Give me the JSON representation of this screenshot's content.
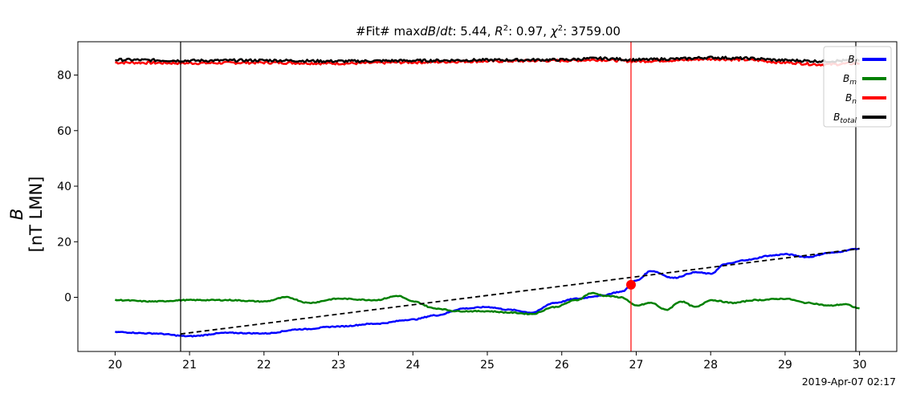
{
  "chart_data": {
    "type": "line",
    "title": "#Fit# maxdB/dt: 5.44, R²: 0.97, χ²: 3759.00",
    "ylabel": "B",
    "yunit": "[nT LMN]",
    "xlim": [
      19.5,
      30.5
    ],
    "ylim": [
      -19.5,
      92
    ],
    "x_ticks": [
      20,
      21,
      22,
      23,
      24,
      25,
      26,
      27,
      28,
      29,
      30
    ],
    "y_ticks": [
      0,
      20,
      40,
      60,
      80
    ],
    "footer": "2019-Apr-07 02:17",
    "legend_position": "top-right",
    "vlines": [
      {
        "x": 20.88,
        "color": "#000000"
      },
      {
        "x": 26.93,
        "color": "#ff0000"
      },
      {
        "x": 29.95,
        "color": "#000000"
      }
    ],
    "fit_line": {
      "x": [
        20.88,
        30.0
      ],
      "y": [
        -13.2,
        17.5
      ],
      "color": "#000000",
      "style": "dashed"
    },
    "marker": {
      "x": 26.93,
      "y": 4.5,
      "color": "#ff0000"
    },
    "series": [
      {
        "name": "B_l",
        "sub": "l",
        "color": "#0000ff",
        "x": [
          20.0,
          20.5,
          21.0,
          21.5,
          22.0,
          22.5,
          23.0,
          23.5,
          24.0,
          24.3,
          24.7,
          25.0,
          25.3,
          25.6,
          25.9,
          26.2,
          26.5,
          26.8,
          27.0,
          27.2,
          27.5,
          27.8,
          28.0,
          28.2,
          28.5,
          28.8,
          29.0,
          29.3,
          29.6,
          30.0
        ],
        "y": [
          -12.5,
          -13.0,
          -14.0,
          -12.8,
          -13.0,
          -11.5,
          -10.5,
          -9.5,
          -8.0,
          -6.5,
          -4.0,
          -3.5,
          -4.5,
          -5.5,
          -2.0,
          -0.5,
          0.5,
          2.0,
          6.0,
          9.5,
          7.0,
          9.0,
          8.5,
          12.0,
          13.5,
          15.0,
          15.5,
          14.5,
          16.0,
          17.5
        ]
      },
      {
        "name": "B_m",
        "sub": "m",
        "color": "#008000",
        "x": [
          20.0,
          20.5,
          21.0,
          21.5,
          22.0,
          22.3,
          22.6,
          23.0,
          23.5,
          23.8,
          24.0,
          24.3,
          24.6,
          25.0,
          25.3,
          25.6,
          25.9,
          26.2,
          26.4,
          26.6,
          26.8,
          27.0,
          27.2,
          27.4,
          27.6,
          27.8,
          28.0,
          28.3,
          28.6,
          29.0,
          29.3,
          29.6,
          29.8,
          30.0
        ],
        "y": [
          -1.0,
          -1.5,
          -1.0,
          -1.0,
          -1.5,
          0.0,
          -2.0,
          -0.5,
          -1.0,
          0.5,
          -1.5,
          -4.0,
          -5.0,
          -5.0,
          -5.5,
          -6.0,
          -3.5,
          -1.0,
          1.5,
          0.5,
          0.0,
          -3.0,
          -2.0,
          -4.5,
          -1.5,
          -3.5,
          -1.0,
          -2.0,
          -1.0,
          -0.5,
          -2.0,
          -3.0,
          -2.5,
          -4.0
        ]
      },
      {
        "name": "B_n",
        "sub": "n",
        "color": "#ff0000",
        "x": [
          20.0,
          21.0,
          22.0,
          23.0,
          24.0,
          25.0,
          26.0,
          26.5,
          27.0,
          27.5,
          28.0,
          28.5,
          29.0,
          29.5,
          30.0
        ],
        "y": [
          84.5,
          84.3,
          84.5,
          84.2,
          84.6,
          85.0,
          85.2,
          85.5,
          85.0,
          85.3,
          85.8,
          85.5,
          84.5,
          83.8,
          84.2
        ]
      },
      {
        "name": "B_total",
        "sub": "total",
        "color": "#000000",
        "x": [
          20.0,
          21.0,
          22.0,
          23.0,
          24.0,
          25.0,
          26.0,
          26.5,
          27.0,
          27.5,
          28.0,
          28.5,
          29.0,
          29.5,
          30.0
        ],
        "y": [
          85.5,
          85.2,
          85.3,
          85.0,
          85.2,
          85.4,
          85.5,
          86.0,
          85.5,
          85.8,
          86.3,
          86.0,
          85.3,
          85.0,
          85.3
        ]
      }
    ]
  }
}
